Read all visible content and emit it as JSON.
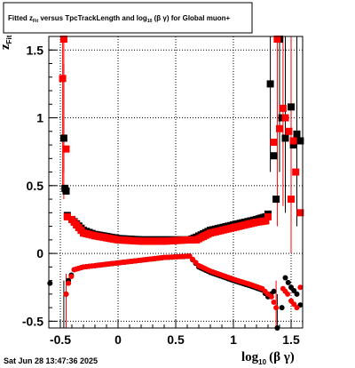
{
  "chart_data": {
    "type": "scatter",
    "title": {
      "prefix": "Fitted  z",
      "prefix_sub": "Fit",
      "middle": "  versus TpcTrackLength and log",
      "middle_sub": "10",
      "suffix": " (β  γ) for Global muon+"
    },
    "xlabel": {
      "main": "log",
      "sub": "10",
      "rest": "(β γ)"
    },
    "ylabel": {
      "main": "z",
      "sub": "Fit"
    },
    "xlim": [
      -0.6,
      1.6
    ],
    "ylim": [
      -0.55,
      1.6
    ],
    "x_ticks": [
      {
        "value": -0.5,
        "label": "-0.5"
      },
      {
        "value": 0,
        "label": "0"
      },
      {
        "value": 0.5,
        "label": "0.5"
      },
      {
        "value": 1,
        "label": "1"
      },
      {
        "value": 1.5,
        "label": "1.5"
      }
    ],
    "y_ticks": [
      {
        "value": -0.5,
        "label": "-0.5"
      },
      {
        "value": 0,
        "label": "0"
      },
      {
        "value": 0.5,
        "label": "0.5"
      },
      {
        "value": 1,
        "label": "1"
      },
      {
        "value": 1.5,
        "label": "1.5"
      }
    ],
    "grid": true,
    "series": [
      {
        "color": "#000000",
        "marker": "square",
        "points": [
          [
            -0.47,
            0.85
          ],
          [
            -0.46,
            0.48
          ],
          [
            -0.45,
            0.46
          ],
          [
            -0.44,
            0.28
          ],
          [
            -0.4,
            0.25
          ],
          [
            -0.3,
            0.17
          ],
          [
            -0.2,
            0.14
          ],
          [
            0.0,
            0.11
          ],
          [
            0.2,
            0.1
          ],
          [
            0.4,
            0.1
          ],
          [
            0.62,
            0.1
          ],
          [
            0.68,
            0.12
          ],
          [
            0.8,
            0.17
          ],
          [
            1.0,
            0.21
          ],
          [
            1.1,
            0.23
          ],
          [
            1.2,
            0.25
          ],
          [
            1.28,
            0.27
          ],
          [
            1.3,
            0.29
          ],
          [
            1.32,
            1.25
          ],
          [
            1.35,
            0.72
          ],
          [
            1.37,
            0.4
          ],
          [
            1.4,
            1.58
          ],
          [
            1.42,
            1.0
          ],
          [
            1.45,
            0.85
          ],
          [
            1.5,
            1.08
          ],
          [
            1.52,
            0.8
          ],
          [
            1.55,
            0.88
          ],
          [
            1.58,
            0.83
          ]
        ],
        "errors": [
          [
            -0.47,
            0.6,
            1.4
          ],
          [
            1.32,
            0.6,
            1.6
          ],
          [
            1.4,
            0.6,
            1.6
          ],
          [
            1.45,
            0.3,
            1.6
          ],
          [
            1.55,
            0.2,
            1.6
          ]
        ]
      },
      {
        "color": "#ff0000",
        "marker": "square",
        "points": [
          [
            -0.48,
            1.29
          ],
          [
            -0.47,
            1.58
          ],
          [
            -0.45,
            0.77
          ],
          [
            -0.44,
            0.27
          ],
          [
            -0.4,
            0.25
          ],
          [
            -0.3,
            0.15
          ],
          [
            -0.2,
            0.13
          ],
          [
            0.0,
            0.1
          ],
          [
            0.2,
            0.09
          ],
          [
            0.4,
            0.09
          ],
          [
            0.62,
            0.1
          ],
          [
            0.68,
            0.1
          ],
          [
            0.8,
            0.15
          ],
          [
            1.0,
            0.19
          ],
          [
            1.2,
            0.23
          ],
          [
            1.28,
            0.24
          ],
          [
            1.3,
            0.27
          ],
          [
            1.35,
            0.82
          ],
          [
            1.38,
            1.58
          ],
          [
            1.4,
            0.92
          ],
          [
            1.43,
            1.07
          ],
          [
            1.45,
            1.0
          ],
          [
            1.48,
            0.9
          ],
          [
            1.5,
            0.4
          ],
          [
            1.52,
            0.83
          ],
          [
            1.54,
            0.6
          ],
          [
            1.58,
            0.3
          ]
        ],
        "errors": [
          [
            -0.48,
            0.45,
            1.6
          ],
          [
            -0.47,
            0.4,
            1.6
          ],
          [
            1.38,
            0.2,
            1.6
          ],
          [
            1.43,
            0.35,
            1.6
          ],
          [
            1.5,
            0.0,
            1.6
          ]
        ]
      },
      {
        "color": "#000000",
        "marker": "circle",
        "points": [
          [
            -0.59,
            -0.22
          ],
          [
            -0.47,
            -0.58
          ],
          [
            -0.45,
            -0.3
          ],
          [
            -0.43,
            -0.2
          ],
          [
            -0.38,
            -0.12
          ],
          [
            -0.3,
            -0.1
          ],
          [
            -0.2,
            -0.09
          ],
          [
            0.0,
            -0.07
          ],
          [
            0.2,
            -0.05
          ],
          [
            0.4,
            -0.03
          ],
          [
            0.62,
            -0.02
          ],
          [
            0.7,
            -0.1
          ],
          [
            0.8,
            -0.14
          ],
          [
            1.0,
            -0.2
          ],
          [
            1.15,
            -0.24
          ],
          [
            1.25,
            -0.27
          ],
          [
            1.3,
            -0.32
          ],
          [
            1.35,
            -0.28
          ],
          [
            1.38,
            -0.55
          ],
          [
            1.42,
            -0.4
          ],
          [
            1.45,
            -0.18
          ],
          [
            1.5,
            -0.25
          ],
          [
            1.55,
            -0.3
          ],
          [
            1.58,
            -0.38
          ]
        ],
        "errors": [
          [
            -0.47,
            -0.55,
            -0.2
          ],
          [
            1.38,
            -0.55,
            -0.3
          ]
        ]
      },
      {
        "color": "#ff0000",
        "marker": "circle",
        "points": [
          [
            -0.45,
            -0.3
          ],
          [
            -0.43,
            -0.22
          ],
          [
            -0.38,
            -0.12
          ],
          [
            -0.3,
            -0.1
          ],
          [
            -0.2,
            -0.09
          ],
          [
            0.0,
            -0.07
          ],
          [
            0.2,
            -0.05
          ],
          [
            0.4,
            -0.03
          ],
          [
            0.62,
            -0.02
          ],
          [
            0.7,
            -0.09
          ],
          [
            0.8,
            -0.13
          ],
          [
            1.0,
            -0.19
          ],
          [
            1.15,
            -0.23
          ],
          [
            1.25,
            -0.26
          ],
          [
            1.3,
            -0.3
          ],
          [
            1.33,
            -0.32
          ],
          [
            1.37,
            -0.4
          ],
          [
            1.43,
            -0.26
          ],
          [
            1.47,
            -0.3
          ],
          [
            1.5,
            -0.35
          ],
          [
            1.55,
            -0.4
          ],
          [
            1.58,
            -0.25
          ]
        ],
        "errors": [
          [
            -0.45,
            -0.55,
            -0.15
          ],
          [
            1.37,
            -0.55,
            -0.2
          ]
        ]
      }
    ]
  },
  "footer": {
    "timestamp": "Sat Jun 28 13:47:36 2025"
  }
}
